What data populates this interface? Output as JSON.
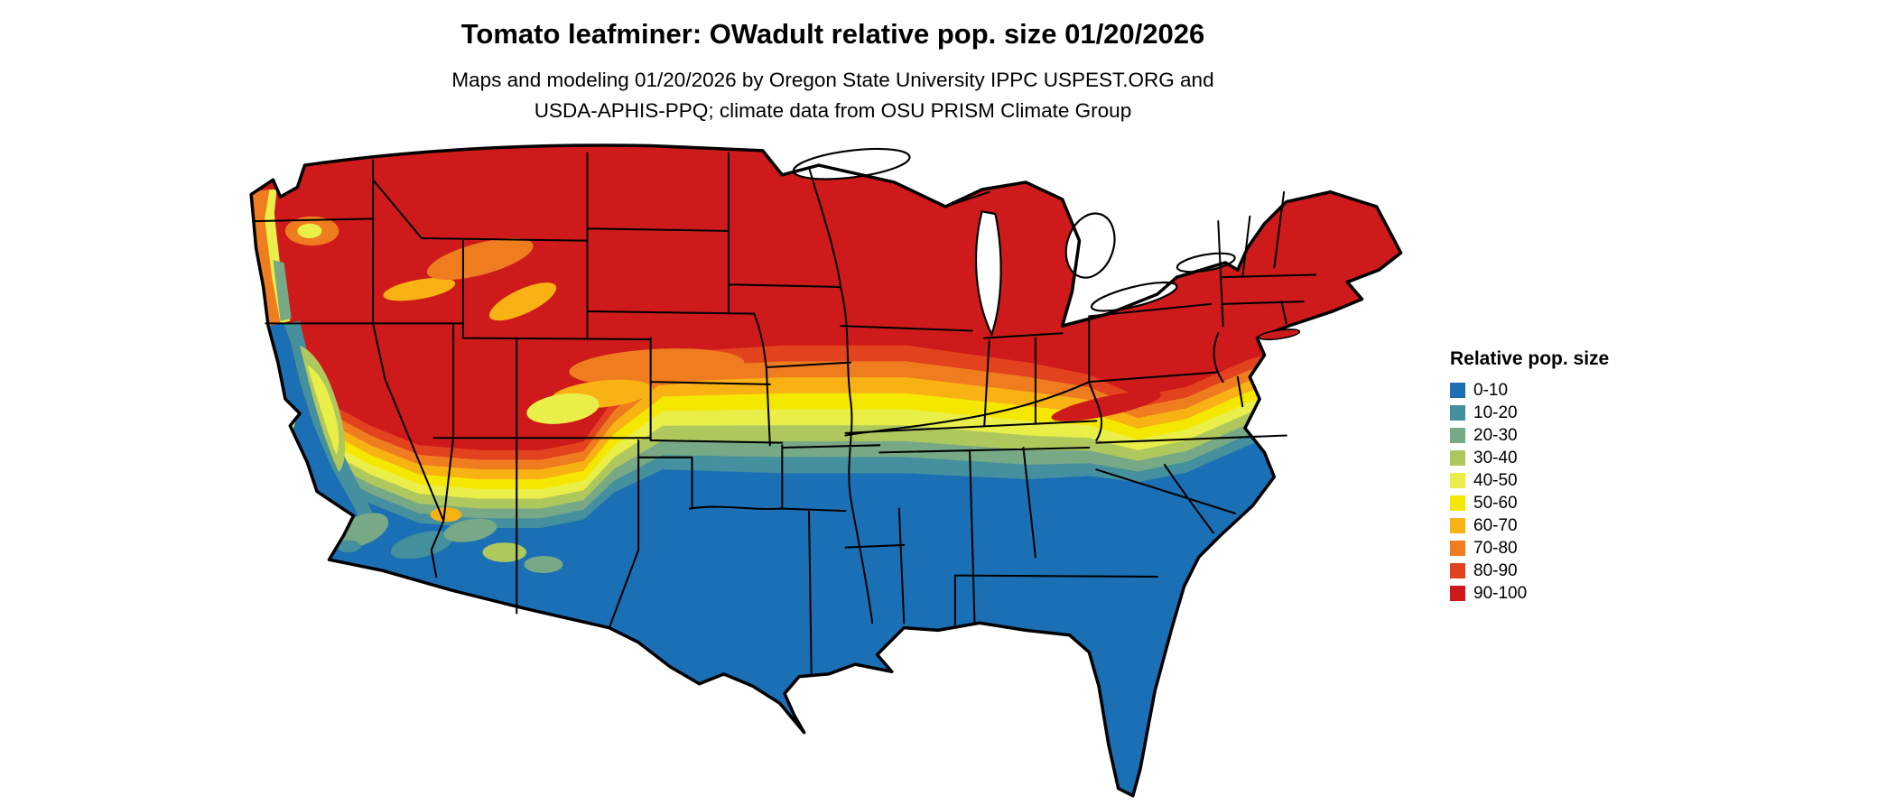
{
  "header": {
    "title": "Tomato leafminer: OWadult relative pop. size 01/20/2026",
    "subtitle_line1": "Maps and modeling 01/20/2026 by Oregon State University IPPC USPEST.ORG and",
    "subtitle_line2": "USDA-APHIS-PPQ; climate data from OSU PRISM Climate Group"
  },
  "legend": {
    "title": "Relative pop. size",
    "items": [
      {
        "label": "0-10",
        "color": "#1b6fb5"
      },
      {
        "label": "10-20",
        "color": "#44909e"
      },
      {
        "label": "20-30",
        "color": "#78a987"
      },
      {
        "label": "30-40",
        "color": "#afc85e"
      },
      {
        "label": "40-50",
        "color": "#e9ef48"
      },
      {
        "label": "50-60",
        "color": "#f5e800"
      },
      {
        "label": "60-70",
        "color": "#f9b214"
      },
      {
        "label": "70-80",
        "color": "#ef7d1f"
      },
      {
        "label": "80-90",
        "color": "#e2431e"
      },
      {
        "label": "90-100",
        "color": "#ce1a1a"
      }
    ]
  },
  "map": {
    "region": "Continental United States",
    "description": "Raster map of relative population size: high values (red) across the northern states and mountain west, banded transition (orange, yellow, green, teal) through the central latitudes, low values (blue) across the southern states, Gulf coast, Florida and the Pacific coast of California"
  }
}
